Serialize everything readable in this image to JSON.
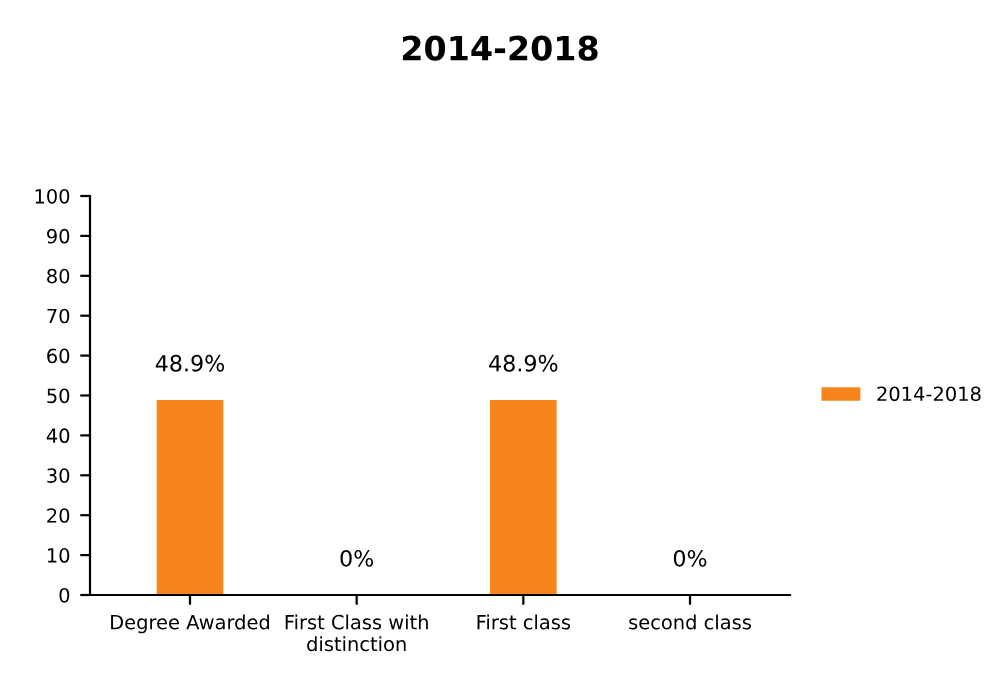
{
  "chart_data": {
    "type": "bar",
    "title": "2014-2018",
    "categories": [
      "Degree Awarded",
      "First Class with distinction",
      "First class",
      "second class"
    ],
    "series": [
      {
        "name": "2014-2018",
        "color": "#f7841c",
        "values": [
          48.9,
          0,
          48.9,
          0
        ],
        "value_labels": [
          "48.9%",
          "0%",
          "48.9%",
          "0%"
        ]
      }
    ],
    "ylim": [
      0,
      100
    ],
    "yticks": [
      0,
      10,
      20,
      30,
      40,
      50,
      60,
      70,
      80,
      90,
      100
    ],
    "grid": false,
    "legend": "right"
  }
}
